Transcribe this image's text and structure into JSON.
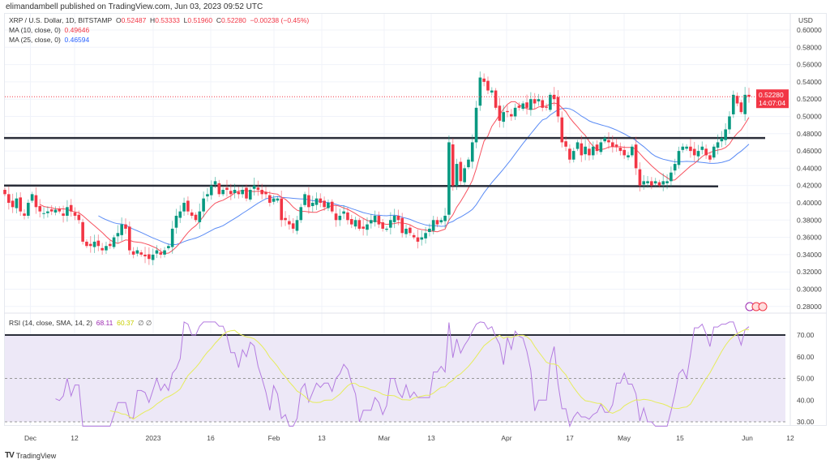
{
  "publisher": "elimandambell published on TradingView.com, Jun 03, 2023 09:52 UTC",
  "legend": {
    "symbol": "XRP / U.S. Dollar, 1D, BITSTAMP",
    "o_label": "O",
    "o": "0.52487",
    "h_label": "H",
    "h": "0.53333",
    "l_label": "L",
    "l": "0.51960",
    "c_label": "C",
    "c": "0.52280",
    "change": "−0.00238 (−0.45%)",
    "ma10_label": "MA (10, close, 0)",
    "ma10": "0.49646",
    "ma25_label": "MA (25, close, 0)",
    "ma25": "0.46594",
    "rsi_label": "RSI (14, close, SMA, 14, 2)",
    "rsi": "68.11",
    "rsi_ma": "60.37",
    "rsi_extra": "∅ ∅"
  },
  "price_axis": {
    "currency": "USD",
    "ticks": [
      "0.60000",
      "0.58000",
      "0.56000",
      "0.54000",
      "0.52000",
      "0.50000",
      "0.48000",
      "0.46000",
      "0.44000",
      "0.42000",
      "0.40000",
      "0.38000",
      "0.36000",
      "0.34000",
      "0.32000",
      "0.30000",
      "0.28000"
    ],
    "last_price": "0.52280",
    "countdown": "14:07:04"
  },
  "rsi_axis": {
    "ticks": [
      "70.00",
      "60.00",
      "50.00",
      "40.00",
      "30.00"
    ]
  },
  "time_axis": {
    "ticks": [
      "Dec",
      "12",
      "2023",
      "16",
      "Feb",
      "13",
      "Mar",
      "13",
      "Apr",
      "17",
      "May",
      "15",
      "Jun",
      "12"
    ]
  },
  "brand": "TradingView",
  "colors": {
    "up": "#089981",
    "down": "#f23645",
    "ma10": "#f7525f",
    "ma25": "#5b8cf5",
    "rsi": "#b47ce0",
    "rsi_ma": "#e6ec5b",
    "level": "#2a2e39"
  },
  "chart_data": {
    "type": "candlestick",
    "title": "XRP / U.S. Dollar, 1D, BITSTAMP",
    "ylabel": "USD",
    "ylim": [
      0.27,
      0.6
    ],
    "x_range": [
      "Nov 2022",
      "Jun 03 2023"
    ],
    "closes": [
      0.41,
      0.4,
      0.395,
      0.405,
      0.39,
      0.385,
      0.4,
      0.41,
      0.395,
      0.39,
      0.388,
      0.39,
      0.39,
      0.392,
      0.39,
      0.385,
      0.395,
      0.39,
      0.385,
      0.38,
      0.355,
      0.35,
      0.35,
      0.355,
      0.35,
      0.345,
      0.35,
      0.35,
      0.36,
      0.365,
      0.375,
      0.37,
      0.345,
      0.34,
      0.345,
      0.34,
      0.338,
      0.335,
      0.34,
      0.345,
      0.34,
      0.345,
      0.35,
      0.37,
      0.385,
      0.39,
      0.4,
      0.39,
      0.385,
      0.38,
      0.39,
      0.405,
      0.41,
      0.42,
      0.425,
      0.41,
      0.415,
      0.415,
      0.41,
      0.415,
      0.41,
      0.415,
      0.405,
      0.415,
      0.42,
      0.415,
      0.41,
      0.41,
      0.4,
      0.405,
      0.405,
      0.38,
      0.38,
      0.375,
      0.37,
      0.38,
      0.395,
      0.41,
      0.395,
      0.4,
      0.405,
      0.4,
      0.395,
      0.4,
      0.39,
      0.38,
      0.385,
      0.39,
      0.38,
      0.375,
      0.38,
      0.37,
      0.37,
      0.375,
      0.38,
      0.385,
      0.375,
      0.37,
      0.37,
      0.38,
      0.385,
      0.38,
      0.365,
      0.37,
      0.365,
      0.36,
      0.355,
      0.36,
      0.365,
      0.37,
      0.38,
      0.375,
      0.38,
      0.385,
      0.47,
      0.42,
      0.445,
      0.425,
      0.44,
      0.45,
      0.47,
      0.51,
      0.545,
      0.54,
      0.53,
      0.53,
      0.51,
      0.495,
      0.505,
      0.505,
      0.5,
      0.51,
      0.51,
      0.515,
      0.51,
      0.52,
      0.515,
      0.52,
      0.51,
      0.51,
      0.525,
      0.52,
      0.5,
      0.47,
      0.465,
      0.45,
      0.46,
      0.47,
      0.455,
      0.465,
      0.455,
      0.465,
      0.46,
      0.47,
      0.475,
      0.47,
      0.465,
      0.465,
      0.46,
      0.455,
      0.455,
      0.465,
      0.44,
      0.42,
      0.425,
      0.425,
      0.42,
      0.425,
      0.42,
      0.425,
      0.425,
      0.435,
      0.445,
      0.46,
      0.465,
      0.465,
      0.46,
      0.455,
      0.46,
      0.465,
      0.455,
      0.45,
      0.465,
      0.47,
      0.475,
      0.485,
      0.5,
      0.525,
      0.515,
      0.505,
      0.525,
      0.5228
    ],
    "moving_averages": [
      {
        "name": "MA (10, close, 0)",
        "last": 0.49646
      },
      {
        "name": "MA (25, close, 0)",
        "last": 0.46594
      }
    ],
    "horizontal_levels": [
      0.475,
      0.42
    ],
    "rsi": {
      "period": 14,
      "last": 68.11,
      "ma_last": 60.37,
      "levels": [
        70,
        50,
        30
      ],
      "ylim": [
        30,
        70
      ]
    }
  }
}
